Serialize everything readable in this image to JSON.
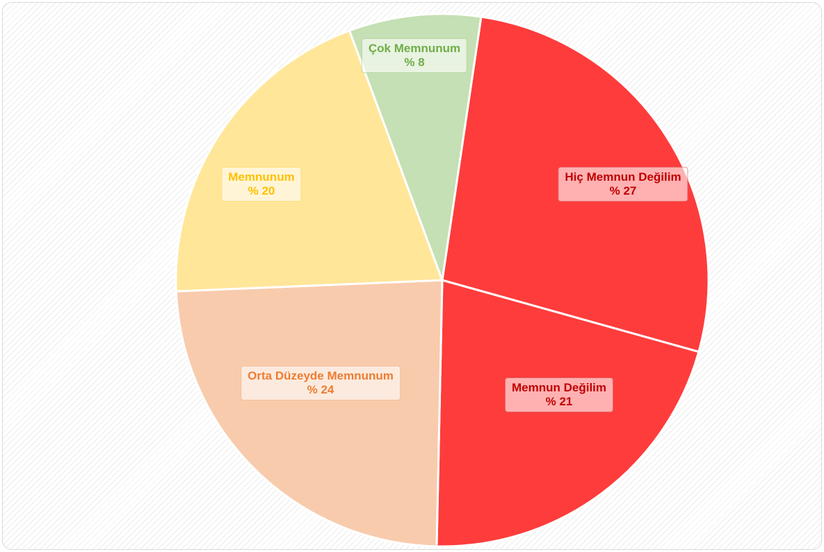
{
  "chart_data": {
    "type": "pie",
    "categories": [
      "Hiç Memnun Değilim",
      "Memnun Değilim",
      "Orta Düzeyde Memnunum",
      "Memnunum",
      "Çok Memnunum"
    ],
    "values": [
      27,
      21,
      24,
      20,
      8
    ],
    "value_labels": [
      "% 27",
      "% 21",
      "% 24",
      "% 20",
      "% 8"
    ],
    "colors": [
      "#fe3c3c",
      "#fe3c3c",
      "#f8cbad",
      "#ffe699",
      "#c5e0b4"
    ],
    "label_colors": [
      "#c00000",
      "#c00000",
      "#ed7d31",
      "#ffc000",
      "#70ad47"
    ]
  }
}
